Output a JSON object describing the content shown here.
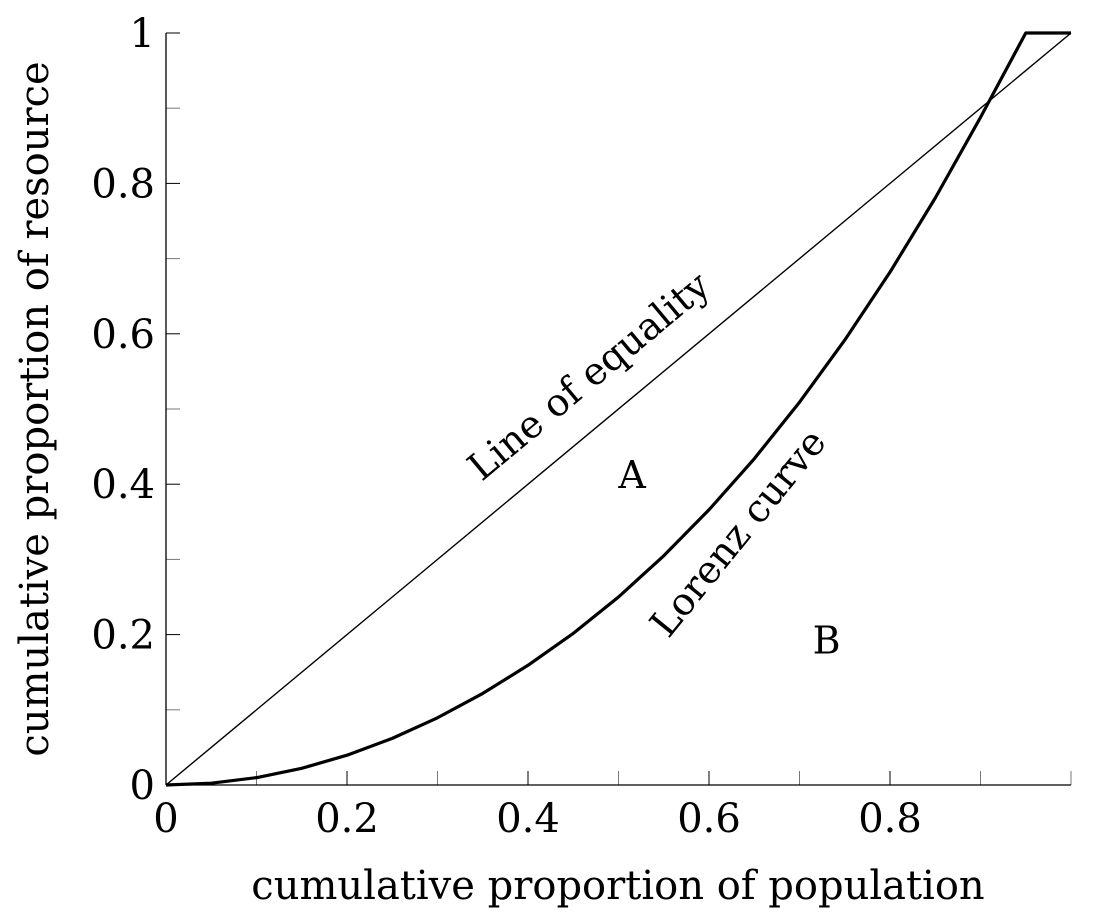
{
  "chart_data": {
    "type": "line",
    "xlabel": "cumulative proportion of population",
    "ylabel": "cumulative proportion of resource",
    "xlim": [
      0,
      1
    ],
    "ylim": [
      0,
      1
    ],
    "x_ticks": [
      {
        "value": 0,
        "label": "0"
      },
      {
        "value": 0.2,
        "label": "0.2"
      },
      {
        "value": 0.4,
        "label": "0.4"
      },
      {
        "value": 0.6,
        "label": "0.6"
      },
      {
        "value": 0.8,
        "label": "0.8"
      }
    ],
    "y_ticks": [
      {
        "value": 0,
        "label": "0"
      },
      {
        "value": 0.2,
        "label": "0.2"
      },
      {
        "value": 0.4,
        "label": "0.4"
      },
      {
        "value": 0.6,
        "label": "0.6"
      },
      {
        "value": 0.8,
        "label": "0.8"
      },
      {
        "value": 1,
        "label": "1"
      }
    ],
    "x_minor_ticks": [
      0.1,
      0.3,
      0.5,
      0.7,
      0.9,
      1.0
    ],
    "y_minor_ticks": [
      0.1,
      0.3,
      0.5,
      0.7,
      0.9
    ],
    "grid": false,
    "series": [
      {
        "name": "Line of equality",
        "x": [
          0,
          1
        ],
        "y": [
          0,
          1
        ]
      },
      {
        "name": "Lorenz curve",
        "x": [
          0,
          0.05,
          0.1,
          0.15,
          0.2,
          0.25,
          0.3,
          0.35,
          0.4,
          0.45,
          0.5,
          0.55,
          0.6,
          0.65,
          0.7,
          0.75,
          0.8,
          0.85,
          0.9,
          0.95,
          1.0
        ],
        "y": [
          0,
          0.0024,
          0.0098,
          0.0222,
          0.0396,
          0.062,
          0.0894,
          0.1218,
          0.1592,
          0.2016,
          0.25,
          0.3048,
          0.366,
          0.4338,
          0.509,
          0.5916,
          0.682,
          0.7806,
          0.8878,
          1.0,
          1.0
        ]
      }
    ],
    "annotations": [
      {
        "text": "A",
        "x": 0.515,
        "y": 0.395
      },
      {
        "text": "B",
        "x": 0.73,
        "y": 0.175
      }
    ]
  }
}
